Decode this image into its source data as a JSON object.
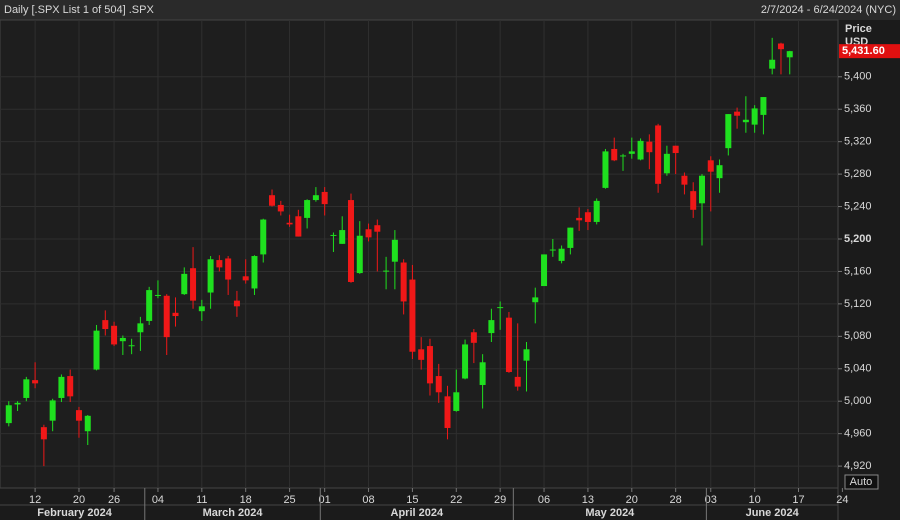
{
  "chart_data": {
    "type": "candlestick",
    "title": "Daily [.SPX List 1 of 504] .SPX",
    "subtitle": "2/7/2024 - 6/24/2024 (NYC)",
    "y_label": "Price",
    "y_unit": "USD",
    "button": "Auto",
    "up_color": "#1fe01f",
    "down_color": "#f01818",
    "open": [
      4973,
      4996,
      5004,
      5026,
      4968,
      4976,
      5004,
      5031,
      4989,
      4963,
      5039,
      5100,
      5093,
      5074,
      5068,
      5085,
      5099,
      5131,
      5130,
      5109,
      5132,
      5164,
      5111,
      5134,
      5174,
      5176,
      5124,
      5154,
      5139,
      5181,
      5254,
      5242,
      5220,
      5228,
      5226,
      5248,
      5258,
      5204,
      5194,
      5248,
      5158,
      5212,
      5217,
      5160,
      5172,
      5171,
      5150,
      5064,
      5068,
      5031,
      5006,
      4988,
      5028,
      5085,
      5020,
      5084,
      5115,
      5103,
      5030,
      5050,
      5122,
      5142,
      5187,
      5173,
      5189,
      5226,
      5233,
      5221,
      5263,
      5311,
      5303,
      5305,
      5298,
      5320,
      5340,
      5281,
      5315,
      5278,
      5259,
      5244,
      5297,
      5275,
      5312,
      5357,
      5344,
      5341,
      5353,
      5410,
      5441,
      5424
    ],
    "high": [
      5000,
      5000,
      5030,
      5048,
      4971,
      5003,
      5033,
      5039,
      4993,
      4983,
      5094,
      5112,
      5098,
      5081,
      5077,
      5104,
      5141,
      5149,
      5132,
      5128,
      5165,
      5190,
      5125,
      5179,
      5180,
      5179,
      5136,
      5175,
      5180,
      5225,
      5261,
      5247,
      5230,
      5236,
      5249,
      5264,
      5264,
      5208,
      5228,
      5256,
      5222,
      5219,
      5224,
      5178,
      5211,
      5175,
      5168,
      5079,
      5077,
      5046,
      5019,
      5039,
      5076,
      5089,
      5058,
      5114,
      5123,
      5110,
      5096,
      5073,
      5140,
      5181,
      5200,
      5192,
      5214,
      5239,
      5237,
      5250,
      5311,
      5325,
      5305,
      5325,
      5324,
      5329,
      5342,
      5315,
      5315,
      5282,
      5270,
      5280,
      5302,
      5298,
      5354,
      5362,
      5376,
      5365,
      5375,
      5448,
      5442,
      5432
    ],
    "low": [
      4969,
      4988,
      5000,
      5016,
      4920,
      4963,
      4999,
      4999,
      4955,
      4946,
      5038,
      5081,
      5068,
      5057,
      5058,
      5062,
      5094,
      5127,
      5057,
      5092,
      5131,
      5114,
      5099,
      5114,
      5160,
      5131,
      5104,
      5145,
      5131,
      5171,
      5240,
      5229,
      5215,
      5203,
      5213,
      5246,
      5229,
      5184,
      5194,
      5146,
      5157,
      5197,
      5160,
      5138,
      5138,
      5107,
      5052,
      5039,
      5007,
      4998,
      4953,
      4987,
      5027,
      5047,
      4991,
      5073,
      5088,
      5035,
      5013,
      5012,
      5096,
      5142,
      5178,
      5170,
      5181,
      5210,
      5211,
      5218,
      5262,
      5296,
      5284,
      5299,
      5297,
      5286,
      5257,
      5278,
      5280,
      5255,
      5226,
      5192,
      5234,
      5257,
      5303,
      5336,
      5331,
      5331,
      5329,
      5403,
      5403,
      5403
    ],
    "close": [
      4995,
      4998,
      5027,
      5022,
      4953,
      5001,
      5030,
      5006,
      4976,
      4982,
      5087,
      5089,
      5070,
      5078,
      5069,
      5096,
      5137,
      5131,
      5079,
      5105,
      5157,
      5124,
      5117,
      5175,
      5165,
      5150,
      5117,
      5149,
      5179,
      5224,
      5241,
      5234,
      5218,
      5203,
      5248,
      5254,
      5243,
      5205,
      5211,
      5147,
      5204,
      5202,
      5209,
      5161,
      5199,
      5123,
      5061,
      5051,
      5022,
      5011,
      4967,
      5011,
      5070,
      5072,
      5048,
      5100,
      5116,
      5036,
      5018,
      5064,
      5128,
      5181,
      5187,
      5188,
      5214,
      5223,
      5221,
      5247,
      5308,
      5297,
      5303,
      5308,
      5321,
      5307,
      5268,
      5305,
      5306,
      5267,
      5236,
      5278,
      5283,
      5291,
      5354,
      5352,
      5347,
      5361,
      5375,
      5421,
      5434,
      5431.6
    ],
    "last_price": {
      "value": 5431.6,
      "label": "5,431.60"
    },
    "xlim": [
      -1,
      94.5
    ],
    "xticks": [
      {
        "value": 3,
        "label": "12"
      },
      {
        "value": 8,
        "label": "20"
      },
      {
        "value": 12,
        "label": "26"
      },
      {
        "value": 17,
        "label": "04"
      },
      {
        "value": 22,
        "label": "11"
      },
      {
        "value": 27,
        "label": "18"
      },
      {
        "value": 32,
        "label": "25"
      },
      {
        "value": 36,
        "label": "01"
      },
      {
        "value": 41,
        "label": "08"
      },
      {
        "value": 46,
        "label": "15"
      },
      {
        "value": 51,
        "label": "22"
      },
      {
        "value": 56,
        "label": "29"
      },
      {
        "value": 61,
        "label": "06"
      },
      {
        "value": 66,
        "label": "13"
      },
      {
        "value": 71,
        "label": "20"
      },
      {
        "value": 76,
        "label": "28"
      },
      {
        "value": 80,
        "label": "03"
      },
      {
        "value": 85,
        "label": "10"
      },
      {
        "value": 90,
        "label": "17"
      },
      {
        "value": 95,
        "label": "24"
      }
    ],
    "months": [
      {
        "value": 0,
        "label": "February 2024"
      },
      {
        "value": 16,
        "label": "March 2024"
      },
      {
        "value": 36,
        "label": "April 2024"
      },
      {
        "value": 58,
        "label": "May 2024"
      },
      {
        "value": 80,
        "label": "June 2024"
      }
    ],
    "ylim": [
      4893,
      5470
    ],
    "yticks": [
      {
        "value": 4920,
        "label": "4,920"
      },
      {
        "value": 4960,
        "label": "4,960"
      },
      {
        "value": 5000,
        "label": "5,000"
      },
      {
        "value": 5040,
        "label": "5,040"
      },
      {
        "value": 5080,
        "label": "5,080"
      },
      {
        "value": 5120,
        "label": "5,120"
      },
      {
        "value": 5160,
        "label": "5,160"
      },
      {
        "value": 5200,
        "label": "5,200"
      },
      {
        "value": 5240,
        "label": "5,240"
      },
      {
        "value": 5280,
        "label": "5,280"
      },
      {
        "value": 5320,
        "label": "5,320"
      },
      {
        "value": 5360,
        "label": "5,360"
      },
      {
        "value": 5400,
        "label": "5,400"
      }
    ],
    "grid": true
  }
}
